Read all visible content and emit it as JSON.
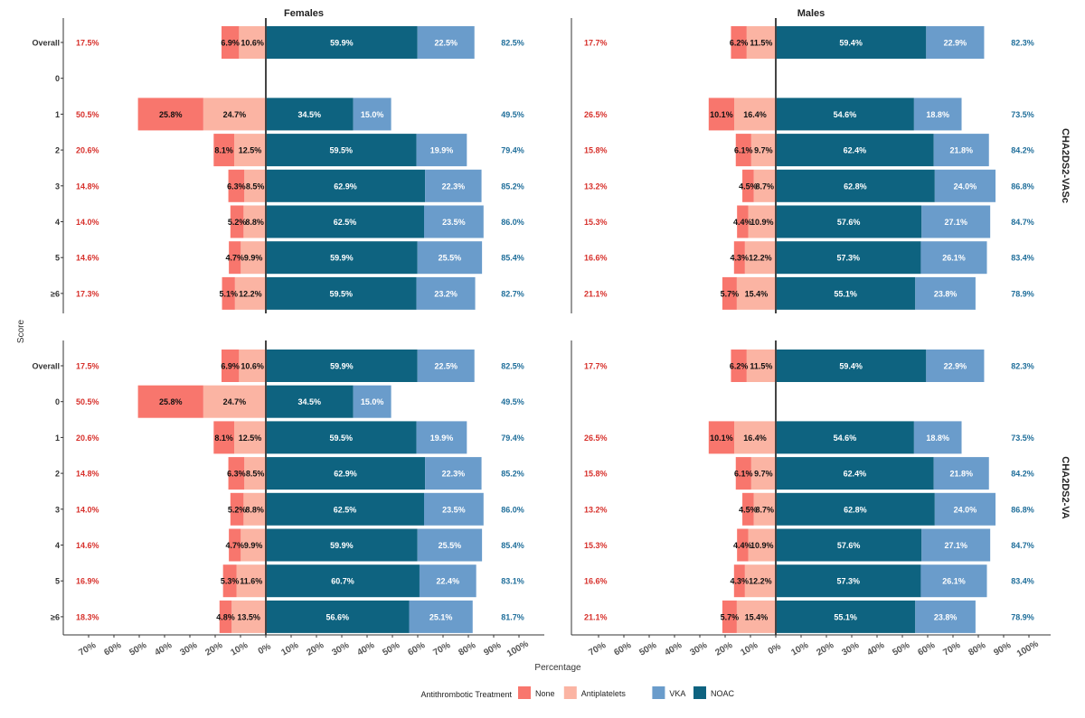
{
  "colors": {
    "None": "#f8766d",
    "Antiplatelets": "#fbb4a3",
    "VKA": "#6a9ccb",
    "NOAC": "#0e6380",
    "total_negative": "#d7302b",
    "total_positive": "#1f6e9a"
  },
  "chart_data": {
    "type": "bar",
    "orientation": "horizontal",
    "stacking": "diverging",
    "xlabel": "Percentage",
    "ylabel": "Score",
    "xlim": [
      -0.7,
      1.0
    ],
    "x_ticks": [
      "70%",
      "60%",
      "50%",
      "40%",
      "30%",
      "20%",
      "10%",
      "0%",
      "10%",
      "20%",
      "30%",
      "40%",
      "50%",
      "60%",
      "70%",
      "80%",
      "90%",
      "100%"
    ],
    "columns": [
      "Females",
      "Males"
    ],
    "rows": [
      "CHA2DS2-VASc",
      "CHA2DS2-VA"
    ],
    "legend": {
      "title": "Antithrombotic Treatment",
      "position": "bottom",
      "entries": [
        "None",
        "Antiplatelets",
        "VKA",
        "NOAC"
      ]
    },
    "panels": [
      {
        "row": "CHA2DS2-VASc",
        "column": "Females",
        "categories": [
          "Overall",
          "0",
          "1",
          "2",
          "3",
          "4",
          "5",
          "≥6"
        ],
        "bars": [
          {
            "category": "Overall",
            "None": 6.9,
            "Antiplatelets": 10.6,
            "NOAC": 59.9,
            "VKA": 22.5,
            "total_negative": "17.5%",
            "total_positive": "82.5%"
          },
          {
            "category": "1",
            "None": 25.8,
            "Antiplatelets": 24.7,
            "NOAC": 34.5,
            "VKA": 15.0,
            "total_negative": "50.5%",
            "total_positive": "49.5%"
          },
          {
            "category": "2",
            "None": 8.1,
            "Antiplatelets": 12.5,
            "NOAC": 59.5,
            "VKA": 19.9,
            "total_negative": "20.6%",
            "total_positive": "79.4%"
          },
          {
            "category": "3",
            "None": 6.3,
            "Antiplatelets": 8.5,
            "NOAC": 62.9,
            "VKA": 22.3,
            "total_negative": "14.8%",
            "total_positive": "85.2%"
          },
          {
            "category": "4",
            "None": 5.2,
            "Antiplatelets": 8.8,
            "NOAC": 62.5,
            "VKA": 23.5,
            "total_negative": "14.0%",
            "total_positive": "86.0%"
          },
          {
            "category": "5",
            "None": 4.7,
            "Antiplatelets": 9.9,
            "NOAC": 59.9,
            "VKA": 25.5,
            "total_negative": "14.6%",
            "total_positive": "85.4%"
          },
          {
            "category": "≥6",
            "None": 5.1,
            "Antiplatelets": 12.2,
            "NOAC": 59.5,
            "VKA": 23.2,
            "total_negative": "17.3%",
            "total_positive": "82.7%"
          }
        ]
      },
      {
        "row": "CHA2DS2-VASc",
        "column": "Males",
        "categories": [
          "Overall",
          "0",
          "1",
          "2",
          "3",
          "4",
          "5",
          "≥6"
        ],
        "bars": [
          {
            "category": "Overall",
            "None": 6.2,
            "Antiplatelets": 11.5,
            "NOAC": 59.4,
            "VKA": 22.9,
            "total_negative": "17.7%",
            "total_positive": "82.3%"
          },
          {
            "category": "1",
            "None": 10.1,
            "Antiplatelets": 16.4,
            "NOAC": 54.6,
            "VKA": 18.8,
            "total_negative": "26.5%",
            "total_positive": "73.5%"
          },
          {
            "category": "2",
            "None": 6.1,
            "Antiplatelets": 9.7,
            "NOAC": 62.4,
            "VKA": 21.8,
            "total_negative": "15.8%",
            "total_positive": "84.2%"
          },
          {
            "category": "3",
            "None": 4.5,
            "Antiplatelets": 8.7,
            "NOAC": 62.8,
            "VKA": 24.0,
            "total_negative": "13.2%",
            "total_positive": "86.8%"
          },
          {
            "category": "4",
            "None": 4.4,
            "Antiplatelets": 10.9,
            "NOAC": 57.6,
            "VKA": 27.1,
            "total_negative": "15.3%",
            "total_positive": "84.7%"
          },
          {
            "category": "5",
            "None": 4.3,
            "Antiplatelets": 12.2,
            "NOAC": 57.3,
            "VKA": 26.1,
            "total_negative": "16.6%",
            "total_positive": "83.4%"
          },
          {
            "category": "≥6",
            "None": 5.7,
            "Antiplatelets": 15.4,
            "NOAC": 55.1,
            "VKA": 23.8,
            "total_negative": "21.1%",
            "total_positive": "78.9%"
          }
        ]
      },
      {
        "row": "CHA2DS2-VA",
        "column": "Females",
        "categories": [
          "Overall",
          "0",
          "1",
          "2",
          "3",
          "4",
          "5",
          "≥6"
        ],
        "bars": [
          {
            "category": "Overall",
            "None": 6.9,
            "Antiplatelets": 10.6,
            "NOAC": 59.9,
            "VKA": 22.5,
            "total_negative": "17.5%",
            "total_positive": "82.5%"
          },
          {
            "category": "0",
            "None": 25.8,
            "Antiplatelets": 24.7,
            "NOAC": 34.5,
            "VKA": 15.0,
            "total_negative": "50.5%",
            "total_positive": "49.5%"
          },
          {
            "category": "1",
            "None": 8.1,
            "Antiplatelets": 12.5,
            "NOAC": 59.5,
            "VKA": 19.9,
            "total_negative": "20.6%",
            "total_positive": "79.4%"
          },
          {
            "category": "2",
            "None": 6.3,
            "Antiplatelets": 8.5,
            "NOAC": 62.9,
            "VKA": 22.3,
            "total_negative": "14.8%",
            "total_positive": "85.2%"
          },
          {
            "category": "3",
            "None": 5.2,
            "Antiplatelets": 8.8,
            "NOAC": 62.5,
            "VKA": 23.5,
            "total_negative": "14.0%",
            "total_positive": "86.0%"
          },
          {
            "category": "4",
            "None": 4.7,
            "Antiplatelets": 9.9,
            "NOAC": 59.9,
            "VKA": 25.5,
            "total_negative": "14.6%",
            "total_positive": "85.4%"
          },
          {
            "category": "5",
            "None": 5.3,
            "Antiplatelets": 11.6,
            "NOAC": 60.7,
            "VKA": 22.4,
            "total_negative": "16.9%",
            "total_positive": "83.1%"
          },
          {
            "category": "≥6",
            "None": 4.8,
            "Antiplatelets": 13.5,
            "NOAC": 56.6,
            "VKA": 25.1,
            "total_negative": "18.3%",
            "total_positive": "81.7%"
          }
        ]
      },
      {
        "row": "CHA2DS2-VA",
        "column": "Males",
        "categories": [
          "Overall",
          "0",
          "1",
          "2",
          "3",
          "4",
          "5",
          "≥6"
        ],
        "bars": [
          {
            "category": "Overall",
            "None": 6.2,
            "Antiplatelets": 11.5,
            "NOAC": 59.4,
            "VKA": 22.9,
            "total_negative": "17.7%",
            "total_positive": "82.3%"
          },
          {
            "category": "1",
            "None": 10.1,
            "Antiplatelets": 16.4,
            "NOAC": 54.6,
            "VKA": 18.8,
            "total_negative": "26.5%",
            "total_positive": "73.5%"
          },
          {
            "category": "2",
            "None": 6.1,
            "Antiplatelets": 9.7,
            "NOAC": 62.4,
            "VKA": 21.8,
            "total_negative": "15.8%",
            "total_positive": "84.2%"
          },
          {
            "category": "3",
            "None": 4.5,
            "Antiplatelets": 8.7,
            "NOAC": 62.8,
            "VKA": 24.0,
            "total_negative": "13.2%",
            "total_positive": "86.8%"
          },
          {
            "category": "4",
            "None": 4.4,
            "Antiplatelets": 10.9,
            "NOAC": 57.6,
            "VKA": 27.1,
            "total_negative": "15.3%",
            "total_positive": "84.7%"
          },
          {
            "category": "5",
            "None": 4.3,
            "Antiplatelets": 12.2,
            "NOAC": 57.3,
            "VKA": 26.1,
            "total_negative": "16.6%",
            "total_positive": "83.4%"
          },
          {
            "category": "≥6",
            "None": 5.7,
            "Antiplatelets": 15.4,
            "NOAC": 55.1,
            "VKA": 23.8,
            "total_negative": "21.1%",
            "total_positive": "78.9%"
          }
        ]
      }
    ]
  }
}
